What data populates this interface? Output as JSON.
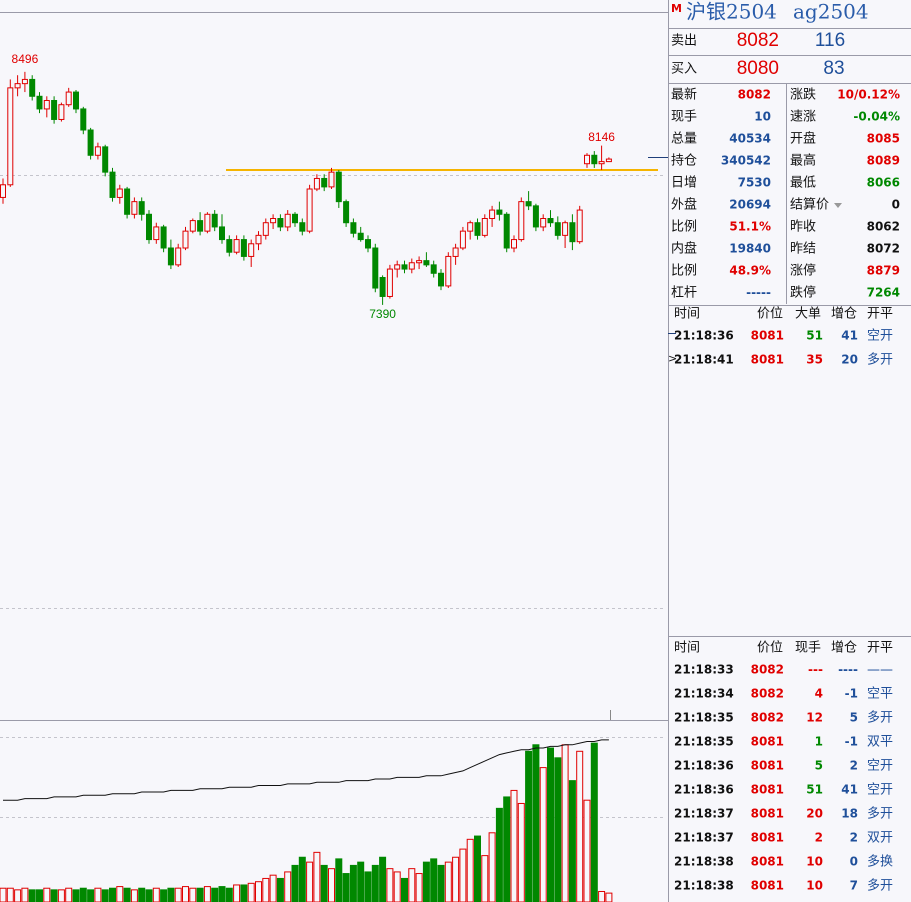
{
  "header": {
    "badge": "M",
    "title": "沪银2504",
    "code": "ag2504"
  },
  "quote": {
    "sell": {
      "label": "卖出",
      "price": 8082,
      "volume": 116
    },
    "buy": {
      "label": "买入",
      "price": 8080,
      "volume": 83
    }
  },
  "stats": {
    "left": [
      {
        "label": "最新",
        "value": 8082
      },
      {
        "label": "现手",
        "value": 10
      },
      {
        "label": "总量",
        "value": 40534
      },
      {
        "label": "持仓",
        "value": 340542
      },
      {
        "label": "日增",
        "value": 7530
      },
      {
        "label": "外盘",
        "value": 20694
      },
      {
        "label": "比例",
        "value": "51.1%"
      },
      {
        "label": "内盘",
        "value": 19840
      },
      {
        "label": "比例",
        "value": "48.9%"
      },
      {
        "label": "杠杆",
        "value": "-----"
      }
    ],
    "right": [
      {
        "label": "涨跌",
        "value": "10/0.12%"
      },
      {
        "label": "速涨",
        "value": "-0.04%"
      },
      {
        "label": "开盘",
        "value": 8085
      },
      {
        "label": "最高",
        "value": 8089
      },
      {
        "label": "最低",
        "value": 8066
      },
      {
        "label": "结算价",
        "value": 0
      },
      {
        "label": "昨收",
        "value": 8062
      },
      {
        "label": "昨结",
        "value": 8072
      },
      {
        "label": "涨停",
        "value": 8879
      },
      {
        "label": "跌停",
        "value": 7264
      }
    ]
  },
  "big_orders": {
    "columns": [
      "时间",
      "价位",
      "大单",
      "增仓",
      "开平"
    ],
    "rows": [
      [
        "21:18:36",
        8081,
        51,
        41,
        "空开"
      ],
      [
        "21:18:41",
        8081,
        35,
        20,
        "多开"
      ]
    ]
  },
  "trades": {
    "columns": [
      "时间",
      "价位",
      "现手",
      "增仓",
      "开平"
    ],
    "rows": [
      [
        "21:18:33",
        8082,
        "---",
        "----",
        "——"
      ],
      [
        "21:18:34",
        8082,
        4,
        -1,
        "空平"
      ],
      [
        "21:18:35",
        8082,
        12,
        5,
        "多开"
      ],
      [
        "21:18:35",
        8081,
        1,
        -1,
        "双平"
      ],
      [
        "21:18:36",
        8081,
        5,
        2,
        "空开"
      ],
      [
        "21:18:36",
        8081,
        51,
        41,
        "空开"
      ],
      [
        "21:18:37",
        8081,
        20,
        18,
        "多开"
      ],
      [
        "21:18:37",
        8081,
        2,
        2,
        "双开"
      ],
      [
        "21:18:38",
        8081,
        10,
        0,
        "多换"
      ],
      [
        "21:18:38",
        8081,
        10,
        7,
        "多开"
      ]
    ]
  },
  "chart_data": {
    "type": "candlestick",
    "ylim": [
      5420,
      8780
    ],
    "volume_ylim": [
      0,
      100
    ],
    "high_label": 8496,
    "low_label": 7390,
    "recent_high_label": 8146,
    "horizontal_line": 8030,
    "up_color": "#e00000",
    "down_color": "#008800",
    "candles": [
      [
        7900,
        7990,
        7870,
        7960
      ],
      [
        7960,
        8460,
        7950,
        8420
      ],
      [
        8420,
        8480,
        8380,
        8440
      ],
      [
        8440,
        8496,
        8400,
        8460
      ],
      [
        8460,
        8480,
        8360,
        8380
      ],
      [
        8380,
        8400,
        8300,
        8320
      ],
      [
        8320,
        8380,
        8280,
        8360
      ],
      [
        8360,
        8380,
        8250,
        8270
      ],
      [
        8270,
        8350,
        8260,
        8340
      ],
      [
        8340,
        8420,
        8330,
        8400
      ],
      [
        8400,
        8410,
        8300,
        8320
      ],
      [
        8320,
        8330,
        8200,
        8220
      ],
      [
        8220,
        8230,
        8080,
        8100
      ],
      [
        8100,
        8160,
        8080,
        8140
      ],
      [
        8140,
        8150,
        8000,
        8020
      ],
      [
        8020,
        8040,
        7880,
        7900
      ],
      [
        7900,
        7960,
        7870,
        7940
      ],
      [
        7940,
        7950,
        7800,
        7820
      ],
      [
        7820,
        7900,
        7800,
        7880
      ],
      [
        7880,
        7900,
        7790,
        7820
      ],
      [
        7820,
        7840,
        7680,
        7700
      ],
      [
        7700,
        7780,
        7680,
        7760
      ],
      [
        7760,
        7770,
        7640,
        7660
      ],
      [
        7660,
        7700,
        7560,
        7580
      ],
      [
        7580,
        7680,
        7570,
        7660
      ],
      [
        7660,
        7760,
        7650,
        7740
      ],
      [
        7740,
        7800,
        7730,
        7790
      ],
      [
        7790,
        7830,
        7720,
        7740
      ],
      [
        7740,
        7830,
        7730,
        7820
      ],
      [
        7820,
        7840,
        7740,
        7760
      ],
      [
        7760,
        7820,
        7680,
        7700
      ],
      [
        7700,
        7720,
        7620,
        7640
      ],
      [
        7640,
        7720,
        7630,
        7700
      ],
      [
        7700,
        7720,
        7600,
        7620
      ],
      [
        7620,
        7700,
        7570,
        7680
      ],
      [
        7680,
        7740,
        7650,
        7720
      ],
      [
        7720,
        7800,
        7700,
        7780
      ],
      [
        7780,
        7820,
        7750,
        7800
      ],
      [
        7800,
        7820,
        7740,
        7760
      ],
      [
        7760,
        7840,
        7740,
        7820
      ],
      [
        7820,
        7830,
        7760,
        7780
      ],
      [
        7780,
        7800,
        7720,
        7740
      ],
      [
        7740,
        7960,
        7730,
        7940
      ],
      [
        7940,
        8010,
        7930,
        7990
      ],
      [
        7990,
        8010,
        7930,
        7950
      ],
      [
        7950,
        8040,
        7940,
        8020
      ],
      [
        8020,
        8030,
        7850,
        7880
      ],
      [
        7880,
        7890,
        7760,
        7780
      ],
      [
        7780,
        7800,
        7710,
        7730
      ],
      [
        7730,
        7760,
        7690,
        7700
      ],
      [
        7700,
        7720,
        7640,
        7660
      ],
      [
        7660,
        7680,
        7450,
        7470
      ],
      [
        7520,
        7530,
        7390,
        7430
      ],
      [
        7430,
        7580,
        7420,
        7560
      ],
      [
        7560,
        7600,
        7520,
        7580
      ],
      [
        7580,
        7600,
        7540,
        7560
      ],
      [
        7560,
        7610,
        7540,
        7590
      ],
      [
        7590,
        7620,
        7560,
        7600
      ],
      [
        7600,
        7640,
        7570,
        7580
      ],
      [
        7580,
        7600,
        7520,
        7540
      ],
      [
        7540,
        7560,
        7460,
        7480
      ],
      [
        7480,
        7640,
        7470,
        7620
      ],
      [
        7620,
        7680,
        7580,
        7660
      ],
      [
        7660,
        7760,
        7650,
        7740
      ],
      [
        7740,
        7790,
        7700,
        7780
      ],
      [
        7780,
        7800,
        7700,
        7720
      ],
      [
        7720,
        7820,
        7710,
        7800
      ],
      [
        7800,
        7860,
        7760,
        7840
      ],
      [
        7840,
        7880,
        7790,
        7820
      ],
      [
        7820,
        7830,
        7640,
        7660
      ],
      [
        7660,
        7720,
        7640,
        7700
      ],
      [
        7700,
        7900,
        7690,
        7880
      ],
      [
        7880,
        7930,
        7840,
        7860
      ],
      [
        7860,
        7870,
        7740,
        7760
      ],
      [
        7760,
        7820,
        7740,
        7800
      ],
      [
        7800,
        7840,
        7760,
        7780
      ],
      [
        7780,
        7810,
        7700,
        7720
      ],
      [
        7720,
        7790,
        7660,
        7780
      ],
      [
        7780,
        7820,
        7650,
        7690
      ],
      [
        7690,
        7860,
        7680,
        7840
      ],
      [
        8060,
        8110,
        8040,
        8100
      ],
      [
        8100,
        8120,
        8040,
        8060
      ],
      [
        8060,
        8146,
        8030,
        8070
      ],
      [
        8070,
        8090,
        8070,
        8082
      ]
    ],
    "volume": [
      6,
      6,
      5,
      6,
      5,
      5,
      6,
      5,
      5,
      6,
      5,
      6,
      5,
      6,
      5,
      6,
      7,
      6,
      5,
      6,
      5,
      6,
      5,
      6,
      6,
      7,
      6,
      6,
      7,
      6,
      7,
      6,
      8,
      8,
      9,
      10,
      12,
      14,
      12,
      16,
      20,
      25,
      22,
      28,
      20,
      18,
      24,
      15,
      20,
      22,
      16,
      20,
      25,
      18,
      16,
      12,
      18,
      15,
      22,
      24,
      20,
      22,
      25,
      30,
      36,
      38,
      26,
      40,
      55,
      62,
      66,
      58,
      90,
      94,
      80,
      92,
      86,
      94,
      72,
      90,
      60,
      95,
      4,
      3
    ],
    "open_interest": [
      60,
      60,
      60,
      61,
      61,
      61,
      61,
      62,
      62,
      62,
      62,
      63,
      63,
      63,
      63,
      64,
      64,
      64,
      64,
      65,
      65,
      65,
      65,
      66,
      66,
      66,
      66,
      67,
      67,
      67,
      67,
      68,
      68,
      68,
      68,
      69,
      69,
      69,
      69,
      70,
      70,
      70,
      70,
      71,
      71,
      71,
      71,
      72,
      72,
      72,
      72,
      73,
      73,
      73,
      74,
      74,
      74,
      74,
      75,
      75,
      75,
      76,
      77,
      78,
      80,
      82,
      84,
      86,
      88,
      89,
      90,
      91,
      91,
      92,
      92,
      93,
      93,
      94,
      94,
      95,
      96,
      96,
      97,
      97
    ]
  }
}
